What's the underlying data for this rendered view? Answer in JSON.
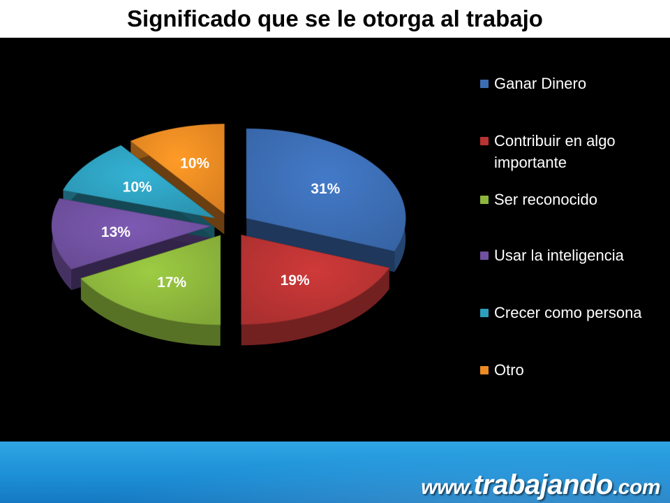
{
  "chart_data": {
    "type": "pie",
    "title": "Significado que se le otorga al trabajo",
    "categories": [
      "Ganar Dinero",
      "Contribuir en algo importante",
      "Ser reconocido",
      "Usar la inteligencia",
      "Crecer como persona",
      "Otro"
    ],
    "values": [
      31,
      19,
      17,
      13,
      10,
      10
    ],
    "data_labels": [
      "31%",
      "19%",
      "17%",
      "13%",
      "10%",
      "10%"
    ],
    "legend_labels": [
      "Ganar Dinero",
      "Contribuir en algo importante",
      "Ser reconocido",
      "Usar la inteligencia",
      "Crecer como persona",
      "Otro"
    ],
    "legend_position": "right",
    "style": "3d-exploded",
    "colors": [
      "#3c6db3",
      "#b93333",
      "#8cb63c",
      "#7050a0",
      "#2e9fbd",
      "#ec8a23"
    ]
  },
  "footer": {
    "brand_prefix": "www.",
    "brand_name": "trabajando",
    "brand_suffix": ".com"
  }
}
